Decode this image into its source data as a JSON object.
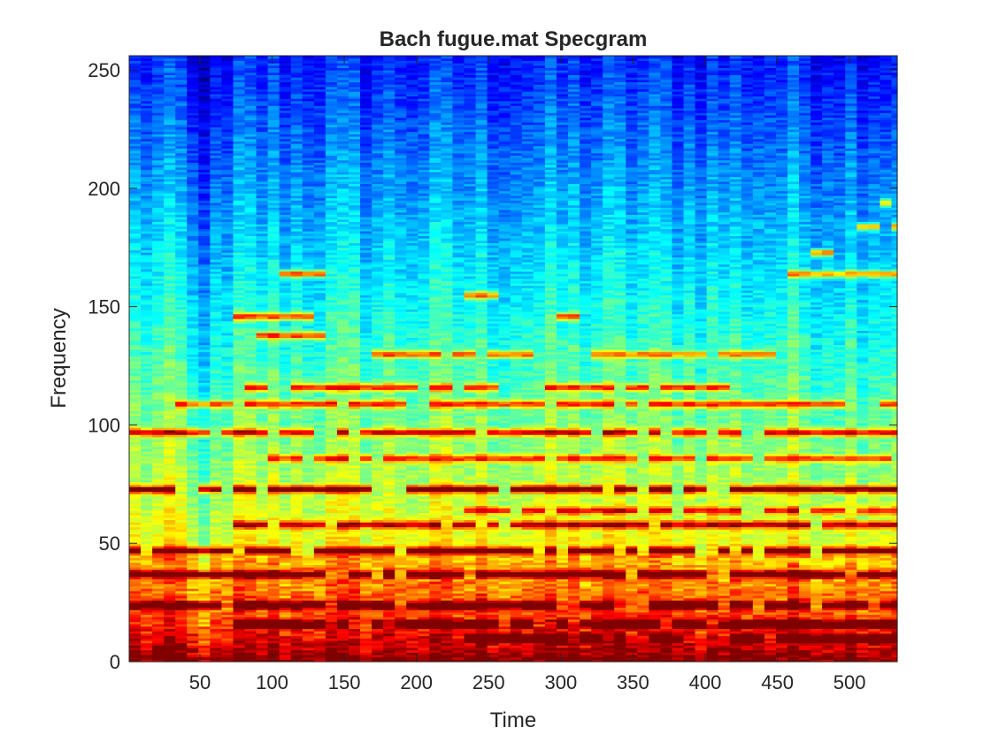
{
  "chart_data": {
    "type": "heatmap",
    "title": "Bach fugue.mat Specgram",
    "xlabel": "Time",
    "ylabel": "Frequency",
    "xlim": [
      1,
      533
    ],
    "ylim": [
      0,
      256
    ],
    "xticks": [
      50,
      100,
      150,
      200,
      250,
      300,
      350,
      400,
      450,
      500
    ],
    "yticks": [
      0,
      50,
      100,
      150,
      200,
      250
    ],
    "colormap": "jet",
    "grid": false,
    "time_bins": 67,
    "frequency_bins": 256,
    "frame_width": 8,
    "harmonic_bands": [
      {
        "frequency": 73,
        "start": 1,
        "end": 533,
        "strength": 0.95
      },
      {
        "frequency": 47,
        "start": 1,
        "end": 533,
        "strength": 0.9
      },
      {
        "frequency": 37,
        "start": 1,
        "end": 533,
        "strength": 0.85
      },
      {
        "frequency": 24,
        "start": 1,
        "end": 533,
        "strength": 0.9
      },
      {
        "frequency": 97,
        "start": 1,
        "end": 533,
        "strength": 0.8
      },
      {
        "frequency": 109,
        "start": 30,
        "end": 533,
        "strength": 0.7
      },
      {
        "frequency": 116,
        "start": 85,
        "end": 420,
        "strength": 0.75
      },
      {
        "frequency": 130,
        "start": 170,
        "end": 290,
        "strength": 0.7
      },
      {
        "frequency": 138,
        "start": 70,
        "end": 140,
        "strength": 0.8
      },
      {
        "frequency": 146,
        "start": 70,
        "end": 140,
        "strength": 0.8
      },
      {
        "frequency": 164,
        "start": 100,
        "end": 135,
        "strength": 0.85
      },
      {
        "frequency": 155,
        "start": 237,
        "end": 260,
        "strength": 0.7
      },
      {
        "frequency": 146,
        "start": 290,
        "end": 315,
        "strength": 0.75
      },
      {
        "frequency": 173,
        "start": 470,
        "end": 490,
        "strength": 0.8
      },
      {
        "frequency": 164,
        "start": 460,
        "end": 533,
        "strength": 0.7
      },
      {
        "frequency": 184,
        "start": 500,
        "end": 533,
        "strength": 0.75
      },
      {
        "frequency": 194,
        "start": 510,
        "end": 533,
        "strength": 0.75
      },
      {
        "frequency": 130,
        "start": 320,
        "end": 450,
        "strength": 0.6
      },
      {
        "frequency": 86,
        "start": 100,
        "end": 533,
        "strength": 0.6
      },
      {
        "frequency": 58,
        "start": 70,
        "end": 533,
        "strength": 0.7
      },
      {
        "frequency": 64,
        "start": 230,
        "end": 533,
        "strength": 0.6
      },
      {
        "frequency": 16,
        "start": 70,
        "end": 533,
        "strength": 0.9
      },
      {
        "frequency": 10,
        "start": 230,
        "end": 533,
        "strength": 0.85
      }
    ]
  }
}
